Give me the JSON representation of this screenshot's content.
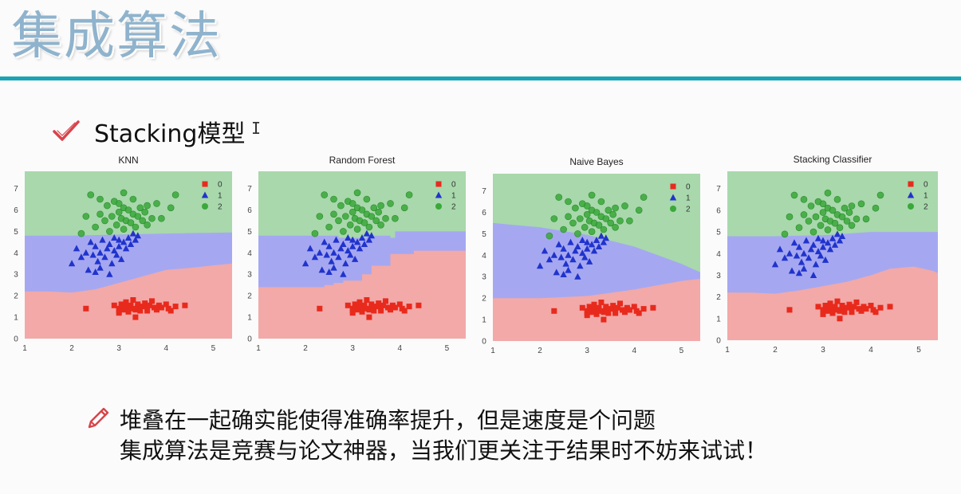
{
  "slide": {
    "title": "集成算法",
    "bullet1": "Stacking模型",
    "cursor_glyph": "I",
    "bullet2_line1": "堆叠在一起确实能使得准确率提升，但是速度是个问题",
    "bullet2_line2": "集成算法是竞赛与论文神器，当我们更关注于结果时不妨来试试！",
    "colors": {
      "title": "#8fb3cd",
      "rule": "#1aa3b4",
      "check": "#d9434a",
      "pencil": "#d9434a"
    },
    "icons": [
      "check-icon",
      "pencil-icon"
    ]
  },
  "chart_data": [
    {
      "type": "scatter",
      "title": "KNN",
      "xlim": [
        1,
        5.4
      ],
      "ylim": [
        0,
        7.8
      ],
      "xticks": [
        "1",
        "2",
        "3",
        "4",
        "5"
      ],
      "yticks": [
        "0",
        "1",
        "2",
        "3",
        "4",
        "5",
        "6",
        "7"
      ],
      "legend": [
        "0",
        "1",
        "2"
      ],
      "legend_position": "top-right",
      "grid": false,
      "regions": {
        "upper": [
          [
            1,
            4.8
          ],
          [
            2,
            4.8
          ],
          [
            3,
            4.85
          ],
          [
            4,
            4.9
          ],
          [
            5.4,
            4.95
          ]
        ],
        "lower": [
          [
            1,
            2.2
          ],
          [
            1.5,
            2.2
          ],
          [
            2,
            2.15
          ],
          [
            2.5,
            2.3
          ],
          [
            3,
            2.6
          ],
          [
            3.5,
            2.9
          ],
          [
            4,
            3.2
          ],
          [
            4.5,
            3.3
          ],
          [
            5.4,
            3.5
          ]
        ]
      }
    },
    {
      "type": "scatter",
      "title": "Random Forest",
      "xlim": [
        1,
        5.4
      ],
      "ylim": [
        0,
        7.8
      ],
      "xticks": [
        "1",
        "2",
        "3",
        "4",
        "5"
      ],
      "yticks": [
        "0",
        "1",
        "2",
        "3",
        "4",
        "5",
        "6",
        "7"
      ],
      "legend": [
        "0",
        "1",
        "2"
      ],
      "legend_position": "top-right",
      "grid": false,
      "regions": {
        "upper": [
          [
            1,
            4.8
          ],
          [
            2.7,
            4.8
          ],
          [
            2.7,
            4.7
          ],
          [
            3.3,
            4.7
          ],
          [
            3.3,
            4.8
          ],
          [
            3.8,
            4.8
          ],
          [
            3.8,
            4.7
          ],
          [
            3.9,
            4.7
          ],
          [
            3.9,
            5
          ],
          [
            5.4,
            5
          ]
        ],
        "lower": [
          [
            1,
            2.4
          ],
          [
            2.4,
            2.4
          ],
          [
            2.4,
            2.5
          ],
          [
            2.6,
            2.5
          ],
          [
            2.6,
            2.6
          ],
          [
            2.8,
            2.6
          ],
          [
            2.8,
            2.7
          ],
          [
            3.2,
            2.7
          ],
          [
            3.2,
            3
          ],
          [
            3.4,
            3
          ],
          [
            3.4,
            3.4
          ],
          [
            3.8,
            3.4
          ],
          [
            3.8,
            3.95
          ],
          [
            4.3,
            3.95
          ],
          [
            4.3,
            4.1
          ],
          [
            5.4,
            4.1
          ]
        ]
      }
    },
    {
      "type": "scatter",
      "title": "Naive Bayes",
      "xlim": [
        1,
        5.4
      ],
      "ylim": [
        0,
        7.8
      ],
      "xticks": [
        "1",
        "2",
        "3",
        "4",
        "5"
      ],
      "yticks": [
        "0",
        "1",
        "2",
        "3",
        "4",
        "5",
        "6",
        "7"
      ],
      "legend": [
        "0",
        "1",
        "2"
      ],
      "legend_position": "top-right",
      "grid": false,
      "regions": {
        "upper": [
          [
            1,
            5.5
          ],
          [
            2,
            5.3
          ],
          [
            3,
            4.95
          ],
          [
            4,
            4.4
          ],
          [
            4.5,
            4
          ],
          [
            5,
            3.6
          ],
          [
            5.4,
            3.2
          ]
        ],
        "lower": [
          [
            1,
            2
          ],
          [
            2,
            2
          ],
          [
            3,
            2.1
          ],
          [
            4,
            2.4
          ],
          [
            5,
            2.8
          ],
          [
            5.4,
            2.9
          ]
        ]
      }
    },
    {
      "type": "scatter",
      "title": "Stacking Classifier",
      "xlim": [
        1,
        5.4
      ],
      "ylim": [
        0,
        7.8
      ],
      "xticks": [
        "1",
        "2",
        "3",
        "4",
        "5"
      ],
      "yticks": [
        "0",
        "1",
        "2",
        "3",
        "4",
        "5",
        "6",
        "7"
      ],
      "legend": [
        "0",
        "1",
        "2"
      ],
      "legend_position": "top-right",
      "grid": false,
      "regions": {
        "upper": [
          [
            1,
            4.8
          ],
          [
            2,
            4.8
          ],
          [
            3,
            4.85
          ],
          [
            4,
            5
          ],
          [
            5.4,
            5
          ]
        ],
        "lower": [
          [
            1,
            2.2
          ],
          [
            1.5,
            2.2
          ],
          [
            2,
            2.15
          ],
          [
            2.5,
            2.3
          ],
          [
            3,
            2.5
          ],
          [
            3.5,
            2.7
          ],
          [
            4,
            3
          ],
          [
            4.4,
            3.3
          ],
          [
            4.9,
            3.4
          ],
          [
            5.3,
            3.2
          ],
          [
            5.4,
            3.1
          ]
        ]
      }
    }
  ],
  "scatter_points": {
    "class0": [
      [
        2.3,
        1.4
      ],
      [
        2.9,
        1.55
      ],
      [
        3.0,
        1.4
      ],
      [
        3.0,
        1.3
      ],
      [
        3.05,
        1.6
      ],
      [
        3.1,
        1.5
      ],
      [
        3.1,
        1.35
      ],
      [
        3.15,
        1.7
      ],
      [
        3.2,
        1.45
      ],
      [
        3.2,
        1.25
      ],
      [
        3.25,
        1.55
      ],
      [
        3.3,
        1.4
      ],
      [
        3.3,
        1.8
      ],
      [
        3.35,
        1.35
      ],
      [
        3.4,
        1.6
      ],
      [
        3.4,
        1.5
      ],
      [
        3.45,
        1.3
      ],
      [
        3.5,
        1.5
      ],
      [
        3.55,
        1.65
      ],
      [
        3.6,
        1.4
      ],
      [
        3.6,
        1.3
      ],
      [
        3.65,
        1.55
      ],
      [
        3.7,
        1.75
      ],
      [
        3.75,
        1.45
      ],
      [
        3.8,
        1.35
      ],
      [
        3.85,
        1.55
      ],
      [
        3.9,
        1.45
      ],
      [
        4.0,
        1.6
      ],
      [
        4.05,
        1.4
      ],
      [
        4.1,
        1.3
      ],
      [
        4.2,
        1.5
      ],
      [
        4.4,
        1.55
      ],
      [
        3.35,
        1.0
      ],
      [
        3.0,
        1.2
      ]
    ],
    "class1": [
      [
        2.0,
        3.5
      ],
      [
        2.1,
        4.2
      ],
      [
        2.2,
        3.8
      ],
      [
        2.3,
        4.0
      ],
      [
        2.35,
        3.2
      ],
      [
        2.4,
        4.5
      ],
      [
        2.45,
        3.9
      ],
      [
        2.5,
        4.3
      ],
      [
        2.55,
        3.6
      ],
      [
        2.6,
        4.0
      ],
      [
        2.6,
        3.3
      ],
      [
        2.65,
        4.6
      ],
      [
        2.7,
        3.8
      ],
      [
        2.75,
        4.2
      ],
      [
        2.8,
        4.4
      ],
      [
        2.85,
        3.5
      ],
      [
        2.9,
        4.1
      ],
      [
        2.9,
        4.7
      ],
      [
        2.95,
        3.9
      ],
      [
        3.0,
        4.3
      ],
      [
        3.0,
        4.6
      ],
      [
        3.05,
        3.7
      ],
      [
        3.1,
        4.5
      ],
      [
        3.15,
        4.2
      ],
      [
        3.2,
        4.7
      ],
      [
        3.25,
        4.4
      ],
      [
        3.3,
        4.9
      ],
      [
        3.35,
        4.6
      ],
      [
        3.4,
        4.8
      ],
      [
        2.5,
        3.1
      ],
      [
        2.8,
        3.0
      ]
    ],
    "class2": [
      [
        2.2,
        4.9
      ],
      [
        2.3,
        5.7
      ],
      [
        2.5,
        5.2
      ],
      [
        2.6,
        5.8
      ],
      [
        2.6,
        6.5
      ],
      [
        2.7,
        5.5
      ],
      [
        2.75,
        6.2
      ],
      [
        2.8,
        5.0
      ],
      [
        2.85,
        5.7
      ],
      [
        2.9,
        6.4
      ],
      [
        2.95,
        5.3
      ],
      [
        3.0,
        5.9
      ],
      [
        3.0,
        6.3
      ],
      [
        3.05,
        5.6
      ],
      [
        3.1,
        5.1
      ],
      [
        3.1,
        6.1
      ],
      [
        3.15,
        5.5
      ],
      [
        3.2,
        6.0
      ],
      [
        3.25,
        5.4
      ],
      [
        3.3,
        5.8
      ],
      [
        3.3,
        6.5
      ],
      [
        3.35,
        5.2
      ],
      [
        3.4,
        5.7
      ],
      [
        3.45,
        6.1
      ],
      [
        3.5,
        5.5
      ],
      [
        3.55,
        5.9
      ],
      [
        3.6,
        5.3
      ],
      [
        3.7,
        5.6
      ],
      [
        3.8,
        6.3
      ],
      [
        3.9,
        5.6
      ],
      [
        4.1,
        6.1
      ],
      [
        4.2,
        6.7
      ],
      [
        2.4,
        6.7
      ],
      [
        3.1,
        6.8
      ],
      [
        3.6,
        6.2
      ]
    ]
  }
}
